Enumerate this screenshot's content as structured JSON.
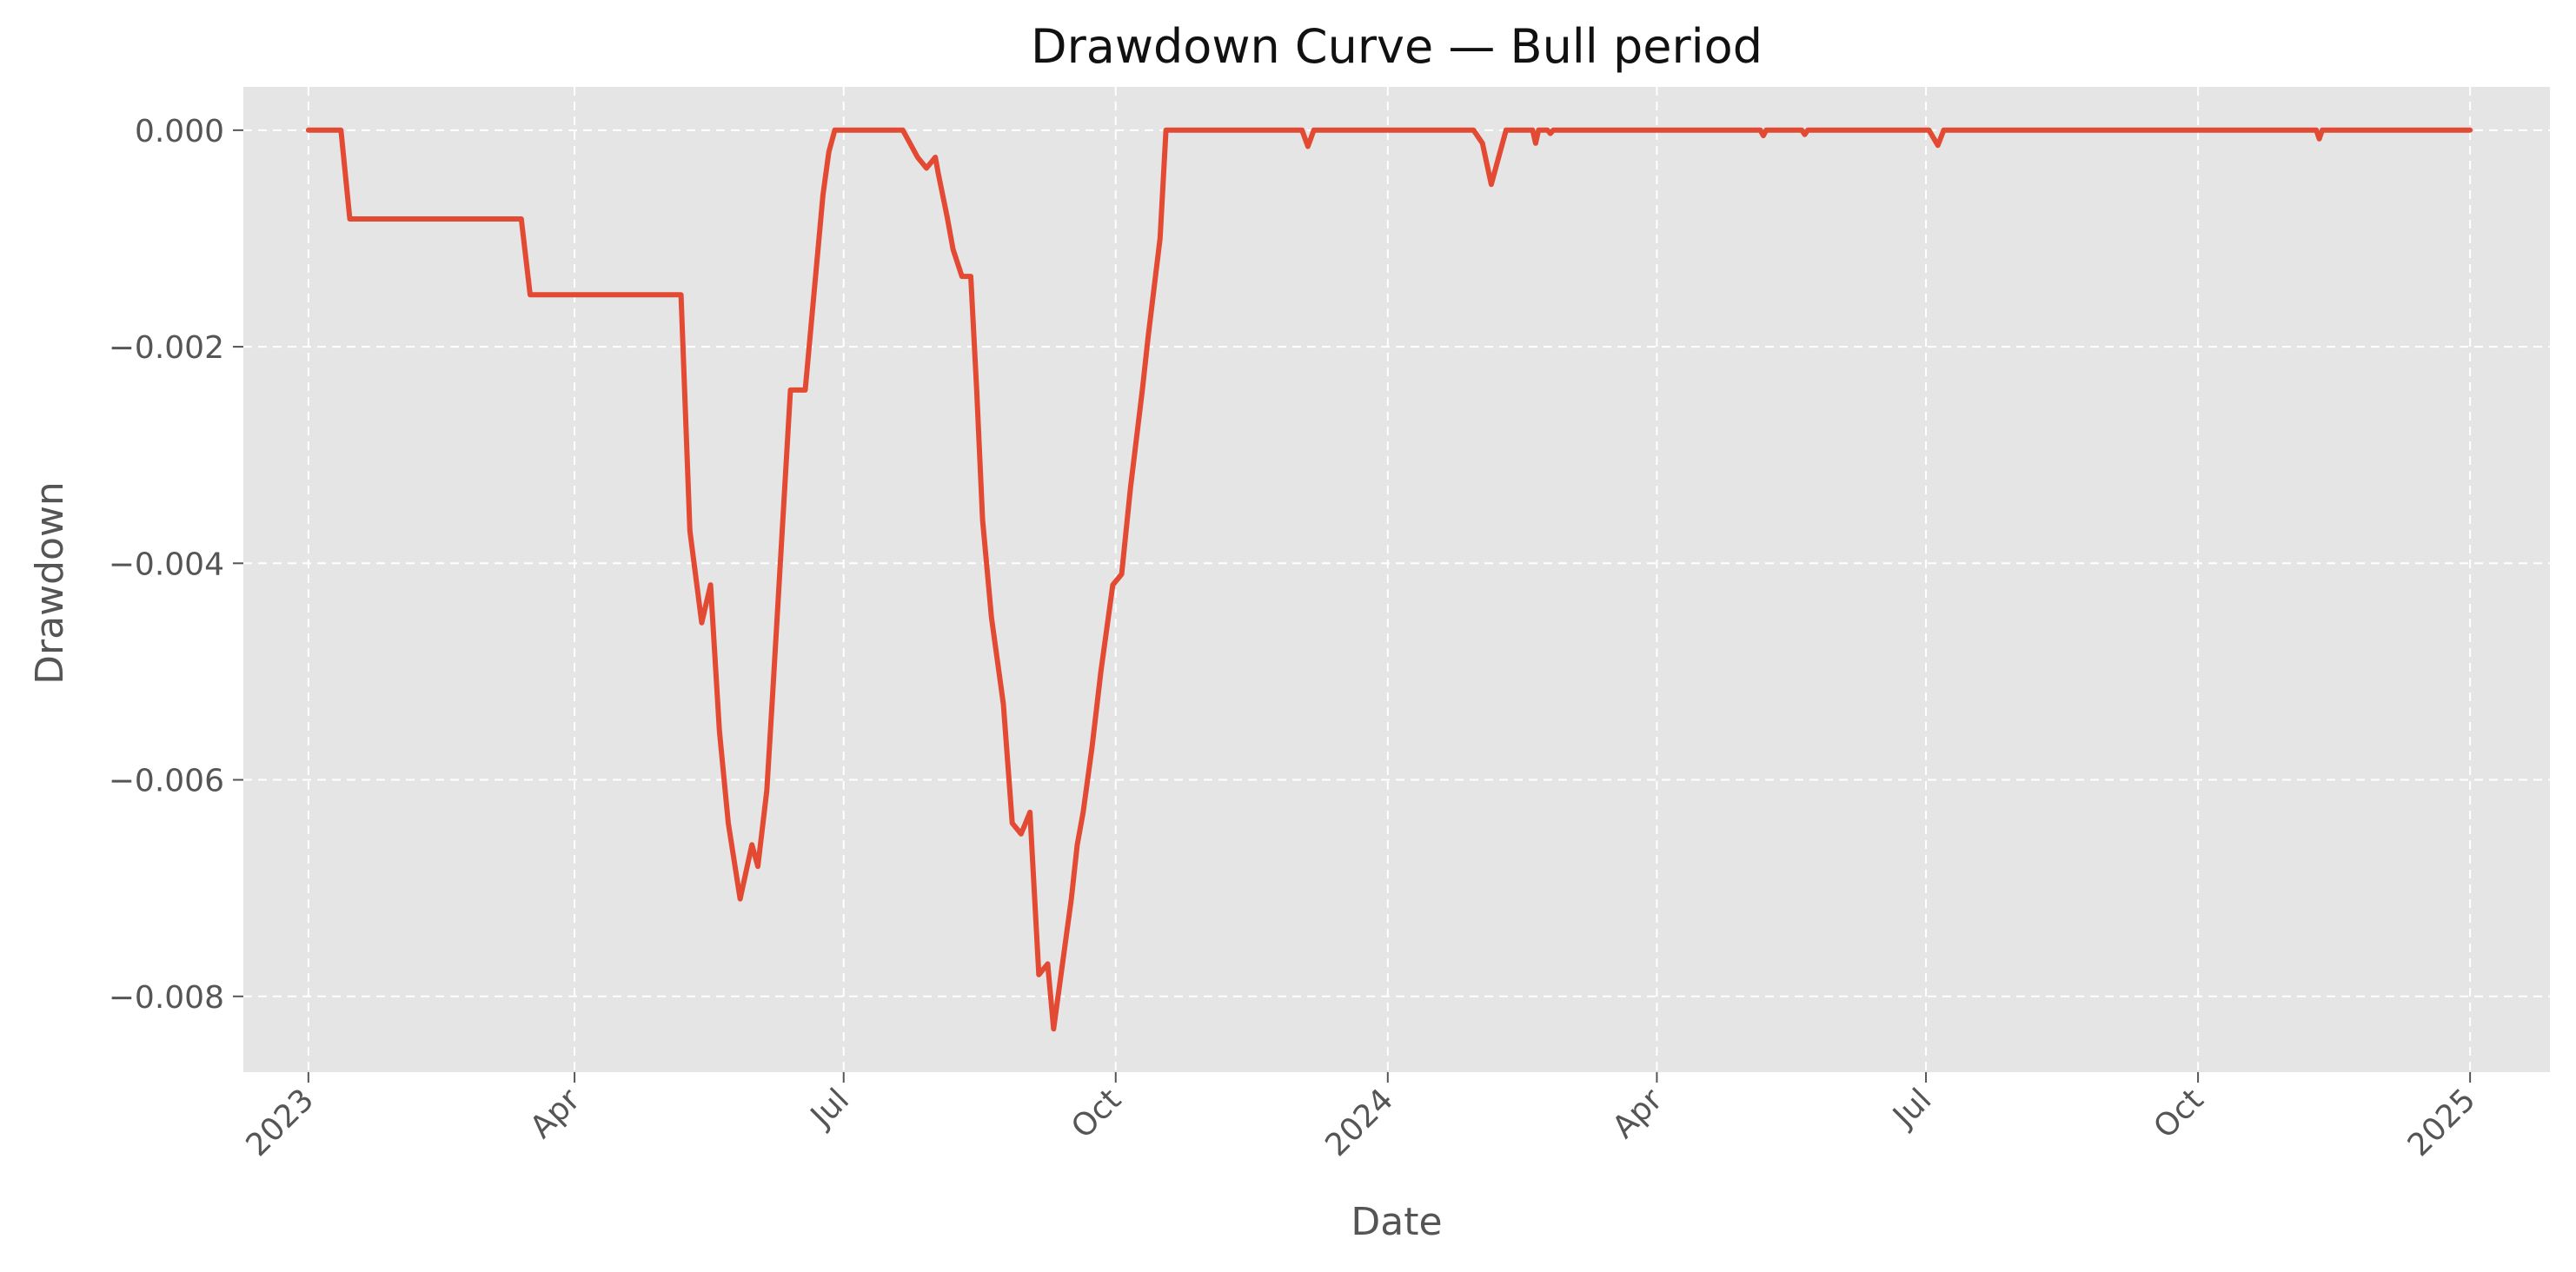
{
  "chart_data": {
    "type": "line",
    "title": "Drawdown Curve — Bull period",
    "xlabel": "Date",
    "ylabel": "Drawdown",
    "xlim": [
      "2022-12-10",
      "2025-01-28"
    ],
    "ylim": [
      -0.0087,
      0.0004
    ],
    "grid": true,
    "legend": "none",
    "colors": {
      "line": "#E24A33",
      "plot_background": "#E5E5E5",
      "grid": "#FFFFFF"
    },
    "x_ticks": [
      {
        "label": "2023",
        "date": "2023-01-01"
      },
      {
        "label": "Apr",
        "date": "2023-04-01"
      },
      {
        "label": "Jul",
        "date": "2023-07-01"
      },
      {
        "label": "Oct",
        "date": "2023-10-01"
      },
      {
        "label": "2024",
        "date": "2024-01-01"
      },
      {
        "label": "Apr",
        "date": "2024-04-01"
      },
      {
        "label": "Jul",
        "date": "2024-07-01"
      },
      {
        "label": "Oct",
        "date": "2024-10-01"
      },
      {
        "label": "2025",
        "date": "2025-01-01"
      }
    ],
    "y_ticks": [
      {
        "label": "0.000",
        "value": 0
      },
      {
        "label": "−0.002",
        "value": -0.002
      },
      {
        "label": "−0.004",
        "value": -0.004
      },
      {
        "label": "−0.006",
        "value": -0.006
      },
      {
        "label": "−0.008",
        "value": -0.008
      }
    ],
    "series": [
      {
        "x": [
          "2023-01-01",
          "2023-01-12",
          "2023-01-15",
          "2023-03-14",
          "2023-03-17",
          "2023-05-07",
          "2023-05-10",
          "2023-05-14",
          "2023-05-17",
          "2023-05-20",
          "2023-05-23",
          "2023-05-27",
          "2023-05-31",
          "2023-06-02",
          "2023-06-05",
          "2023-06-07",
          "2023-06-10",
          "2023-06-13",
          "2023-06-18",
          "2023-06-20",
          "2023-06-22",
          "2023-06-24",
          "2023-06-26",
          "2023-06-28",
          "2023-07-01",
          "2023-07-21",
          "2023-07-24",
          "2023-07-26",
          "2023-07-29",
          "2023-08-01",
          "2023-08-02",
          "2023-08-05",
          "2023-08-07",
          "2023-08-10",
          "2023-08-13",
          "2023-08-15",
          "2023-08-17",
          "2023-08-20",
          "2023-08-24",
          "2023-08-27",
          "2023-08-30",
          "2023-09-02",
          "2023-09-05",
          "2023-09-08",
          "2023-09-10",
          "2023-09-14",
          "2023-09-16",
          "2023-09-18",
          "2023-09-20",
          "2023-09-23",
          "2023-09-26",
          "2023-09-30",
          "2023-10-03",
          "2023-10-06",
          "2023-10-10",
          "2023-10-12",
          "2023-10-16",
          "2023-10-18",
          "2023-10-20",
          "2023-10-22",
          "2023-10-25",
          "2023-12-03",
          "2023-12-05",
          "2023-12-07",
          "2024-01-30",
          "2024-02-02",
          "2024-02-05",
          "2024-02-07",
          "2024-02-10",
          "2024-02-19",
          "2024-02-20",
          "2024-02-21",
          "2024-02-24",
          "2024-02-25",
          "2024-02-26",
          "2024-05-06",
          "2024-05-07",
          "2024-05-08",
          "2024-05-20",
          "2024-05-21",
          "2024-05-22",
          "2024-07-02",
          "2024-07-05",
          "2024-07-07",
          "2024-07-10",
          "2024-11-10",
          "2024-11-11",
          "2024-11-12",
          "2025-01-01"
        ],
        "y": [
          0,
          0,
          -0.00082,
          -0.00082,
          -0.00152,
          -0.00152,
          -0.0037,
          -0.00455,
          -0.0042,
          -0.00555,
          -0.0064,
          -0.0071,
          -0.0066,
          -0.0068,
          -0.0061,
          -0.0052,
          -0.0038,
          -0.0024,
          -0.0024,
          -0.0018,
          -0.0012,
          -0.0006,
          -0.0002,
          0,
          0,
          0,
          -0.00015,
          -0.00025,
          -0.00035,
          -0.00025,
          -0.0004,
          -0.0008,
          -0.0011,
          -0.00135,
          -0.00135,
          -0.0024,
          -0.0036,
          -0.0045,
          -0.0053,
          -0.0064,
          -0.0065,
          -0.0063,
          -0.0078,
          -0.0077,
          -0.0083,
          -0.0075,
          -0.0071,
          -0.0066,
          -0.0063,
          -0.0057,
          -0.005,
          -0.0042,
          -0.0041,
          -0.0033,
          -0.0024,
          -0.0019,
          -0.001,
          0,
          0,
          0,
          0,
          0,
          -0.00015,
          0,
          0,
          -0.00012,
          -0.0005,
          -0.0003,
          0,
          0,
          -0.00012,
          0,
          0,
          -3e-05,
          0,
          0,
          -5e-05,
          0,
          0,
          -4e-05,
          0,
          0,
          -0.00014,
          0,
          0,
          0,
          -8e-05,
          0,
          0
        ]
      }
    ]
  }
}
